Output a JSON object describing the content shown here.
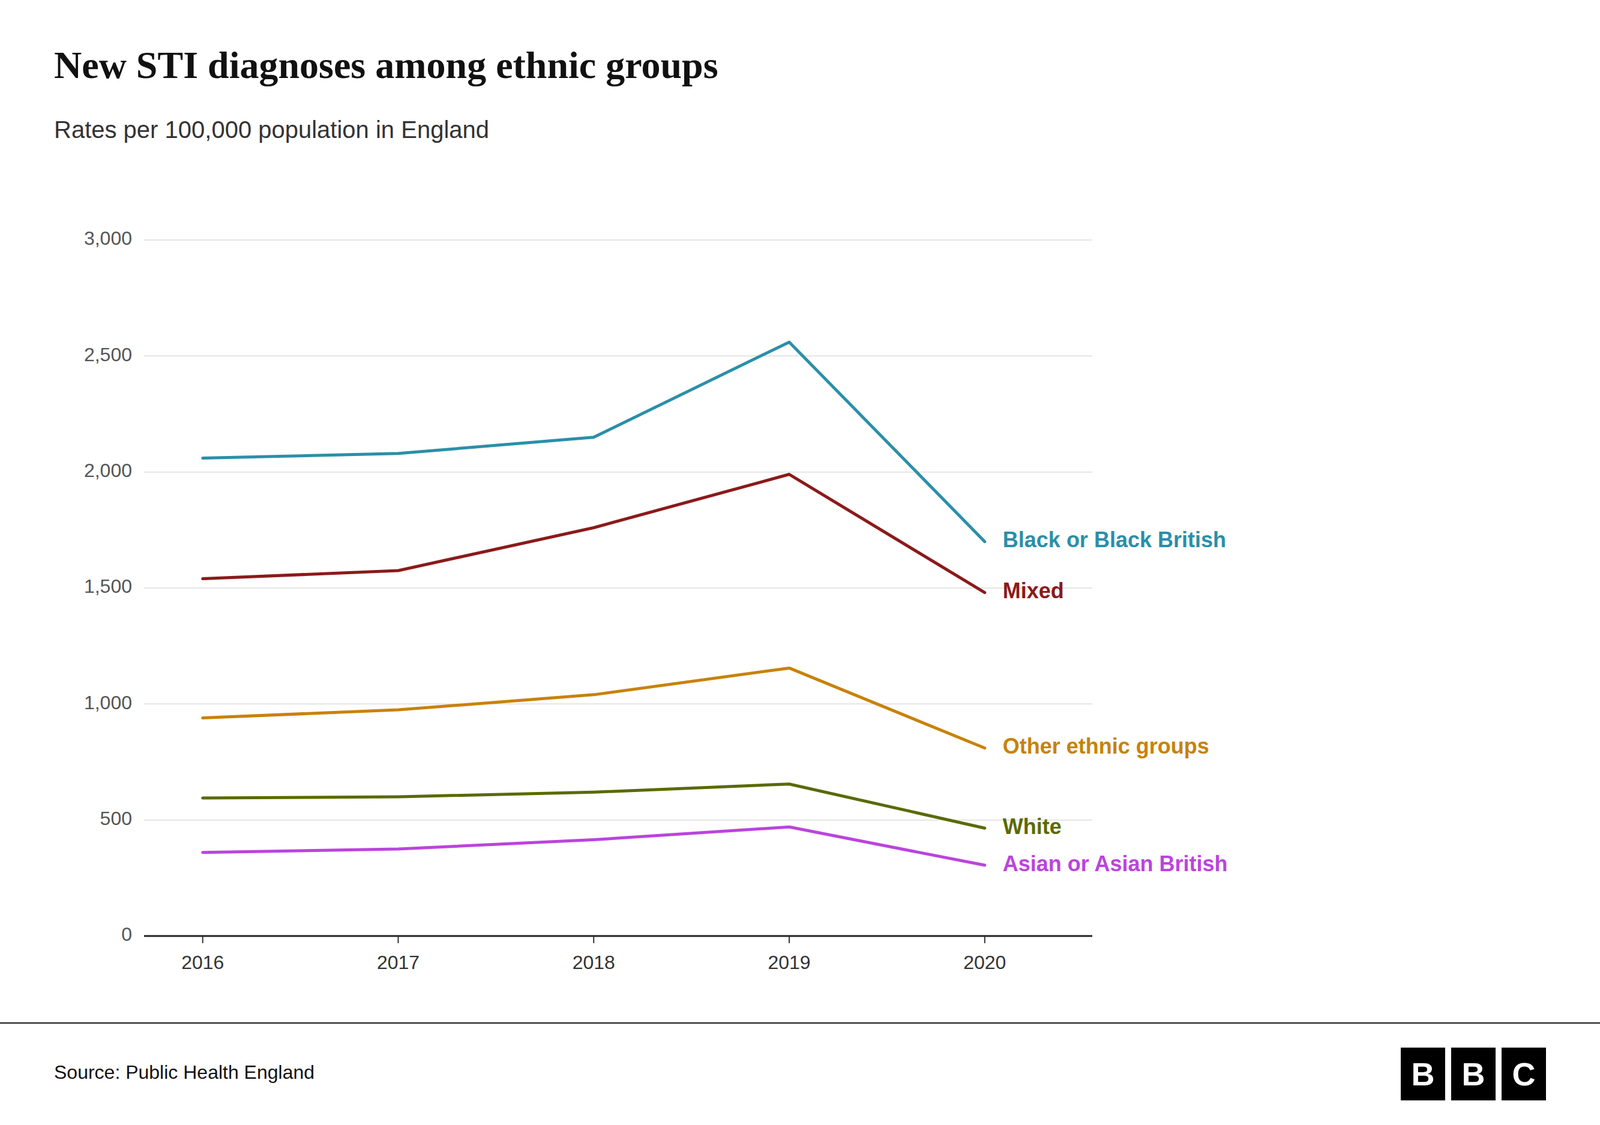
{
  "chart_data": {
    "type": "line",
    "title": "New STI diagnoses among ethnic groups",
    "subtitle": "Rates per 100,000 population in England",
    "source": "Source: Public Health England",
    "logo": [
      "B",
      "B",
      "C"
    ],
    "x": [
      2016,
      2017,
      2018,
      2019,
      2020
    ],
    "series": [
      {
        "name": "Black or Black British",
        "color": "#2b8fa8",
        "values": [
          2060,
          2080,
          2150,
          2560,
          1700
        ]
      },
      {
        "name": "Mixed",
        "color": "#8b1a1a",
        "values": [
          1540,
          1575,
          1760,
          1990,
          1480
        ]
      },
      {
        "name": "Other ethnic groups",
        "color": "#c8820a",
        "values": [
          940,
          975,
          1040,
          1155,
          810
        ]
      },
      {
        "name": "White",
        "color": "#5a6a00",
        "values": [
          595,
          600,
          620,
          655,
          465
        ]
      },
      {
        "name": "Asian or Asian British",
        "color": "#bb44dd",
        "values": [
          360,
          375,
          415,
          470,
          305
        ]
      }
    ],
    "xlim": [
      2015.7,
      2020.55
    ],
    "xticks": [
      2016,
      2017,
      2018,
      2019,
      2020
    ],
    "ylim": [
      0,
      3000
    ],
    "yticks": [
      0,
      500,
      {
        "value": 1000,
        "label": "1,000"
      },
      {
        "value": 1500,
        "label": "1,500"
      },
      {
        "value": 2000,
        "label": "2,000"
      },
      {
        "value": 2500,
        "label": "2,500"
      },
      {
        "value": 3000,
        "label": "3,000"
      }
    ],
    "grid": true
  }
}
